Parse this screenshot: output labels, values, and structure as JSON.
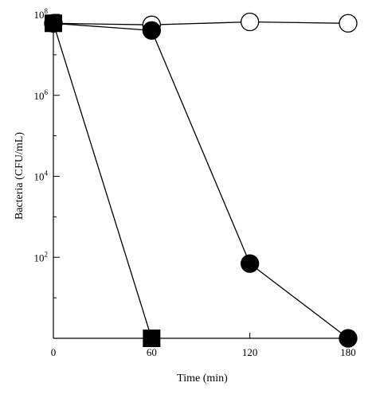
{
  "chart_data": {
    "type": "line",
    "title": "",
    "xlabel": "Time (min)",
    "ylabel": "Bacteria (CFU/mL)",
    "x_ticks": [
      0,
      60,
      120,
      180
    ],
    "x_tick_labels": [
      "0",
      "60",
      "120",
      "180"
    ],
    "xlim": [
      0,
      180
    ],
    "y_scale": "log",
    "ylim": [
      1,
      100000000
    ],
    "y_major_ticks": [
      100,
      10000,
      1000000,
      100000000
    ],
    "y_tick_labels": [
      {
        "base": "10",
        "exp": "2"
      },
      {
        "base": "10",
        "exp": "4"
      },
      {
        "base": "10",
        "exp": "6"
      },
      {
        "base": "10",
        "exp": "8"
      }
    ],
    "grid": false,
    "series": [
      {
        "marker": "open-circle",
        "x": [
          0,
          60,
          120,
          180
        ],
        "y": [
          60000000,
          55000000,
          65000000,
          60000000
        ]
      },
      {
        "marker": "filled-circle",
        "x": [
          0,
          60,
          120,
          180
        ],
        "y": [
          60000000,
          40000000,
          70,
          1
        ]
      },
      {
        "marker": "filled-square",
        "x": [
          0,
          60
        ],
        "y": [
          60000000,
          1
        ]
      }
    ]
  }
}
